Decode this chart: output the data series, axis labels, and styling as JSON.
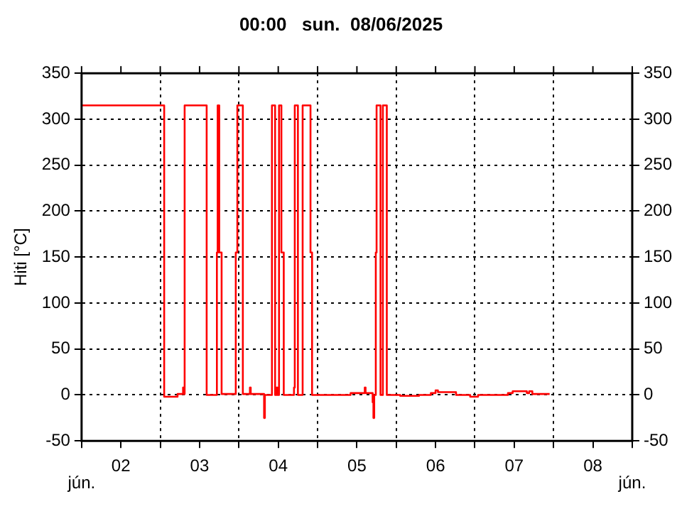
{
  "chart_data": {
    "type": "step",
    "title": "00:00   sun.  08/06/2025",
    "ylabel": "Hiti [°C]",
    "annotations": [
      "jún.",
      "jún."
    ],
    "series": [
      {
        "color": "#ff0000",
        "x": [
          2,
          3.05,
          3.22,
          3.29,
          3.3,
          3.31,
          3.59,
          3.72,
          3.73,
          3.75,
          3.78,
          3.96,
          3.98,
          4.05,
          4.14,
          4.15,
          4.32,
          4.33,
          4.42,
          4.46,
          4.48,
          4.49,
          4.51,
          4.54,
          4.57,
          4.7,
          4.71,
          4.75,
          4.81,
          4.91,
          4.93,
          5.42,
          5.6,
          5.61,
          5.7,
          5.71,
          5.72,
          5.74,
          5.75,
          5.8,
          5.83,
          5.88,
          6.05,
          6.29,
          6.44,
          6.5,
          6.53,
          6.76,
          6.94,
          7.04,
          7.42,
          7.48,
          7.66,
          7.69,
          7.73,
          7.95
        ],
        "values": [
          315,
          -2,
          1,
          8,
          1,
          315,
          0,
          155,
          315,
          155,
          1,
          155,
          315,
          1,
          8,
          1,
          -25,
          0,
          315,
          0,
          8,
          0,
          315,
          155,
          0,
          8,
          315,
          0,
          315,
          155,
          0,
          2,
          8,
          2,
          -8,
          -25,
          0,
          155,
          315,
          0,
          315,
          0,
          -1,
          0,
          2,
          5,
          3,
          0,
          -2,
          0,
          2,
          4,
          2,
          4,
          1,
          1
        ]
      }
    ],
    "xlim": [
      2,
      9
    ],
    "xticks": [
      {
        "value": 2,
        "label": null
      },
      {
        "value": 2.5,
        "label": "02"
      },
      {
        "value": 3,
        "label": null
      },
      {
        "value": 3.5,
        "label": "03"
      },
      {
        "value": 4,
        "label": null
      },
      {
        "value": 4.5,
        "label": "04"
      },
      {
        "value": 5,
        "label": null
      },
      {
        "value": 5.5,
        "label": "05"
      },
      {
        "value": 6,
        "label": null
      },
      {
        "value": 6.5,
        "label": "06"
      },
      {
        "value": 7,
        "label": null
      },
      {
        "value": 7.5,
        "label": "07"
      },
      {
        "value": 8,
        "label": null
      },
      {
        "value": 8.5,
        "label": "08"
      },
      {
        "value": 9,
        "label": null
      }
    ],
    "ylim": [
      -50,
      350
    ],
    "yticks": [
      -50,
      0,
      50,
      100,
      150,
      200,
      250,
      300,
      350
    ],
    "y2lim": [
      -50,
      350
    ],
    "y2ticks": [
      -50,
      0,
      50,
      100,
      150,
      200,
      250,
      300,
      350
    ],
    "grid": true,
    "legend": false,
    "line_style": "solid",
    "marker": "none"
  }
}
